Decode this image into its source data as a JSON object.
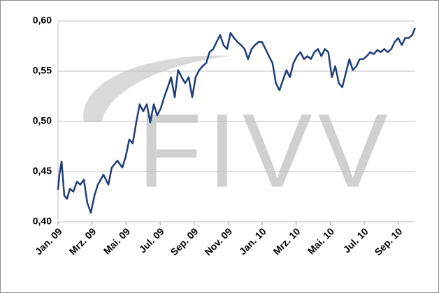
{
  "chart_data": {
    "type": "line",
    "watermark": "FIVV",
    "x": [
      0,
      0.08,
      0.21,
      0.37,
      0.53,
      0.7,
      0.9,
      1.11,
      1.31,
      1.52,
      1.72,
      1.93,
      2.14,
      2.34,
      2.67,
      2.96,
      3.16,
      3.49,
      3.78,
      3.98,
      4.19,
      4.39,
      4.6,
      4.8,
      5.01,
      5.22,
      5.42,
      5.63,
      5.83,
      6.04,
      6.24,
      6.45,
      6.65,
      6.86,
      7.06,
      7.27,
      7.47,
      7.68,
      7.89,
      8.09,
      8.3,
      8.5,
      8.71,
      8.91,
      9.12,
      9.32,
      9.53,
      9.73,
      9.94,
      10.14,
      10.35,
      10.55,
      10.76,
      10.97,
      11.17,
      11.38,
      11.58,
      11.79,
      11.99,
      12.2,
      12.4,
      12.61,
      12.81,
      13.02,
      13.22,
      13.43,
      13.63,
      13.84,
      14.05,
      14.25,
      14.46,
      14.66,
      14.87,
      15.07,
      15.28,
      15.48,
      15.69,
      15.89,
      16.1,
      16.3,
      16.51,
      16.71,
      16.92,
      17.13,
      17.33,
      17.54,
      17.74,
      17.95,
      18.15,
      18.36,
      18.56,
      18.77,
      18.97,
      19.18,
      19.38,
      19.59,
      19.79,
      20.0,
      20.21,
      20.41,
      20.62,
      20.82,
      20.99
    ],
    "series": [
      {
        "color": "#1f3d7a",
        "values": [
          0.432,
          0.447,
          0.46,
          0.426,
          0.423,
          0.433,
          0.43,
          0.44,
          0.437,
          0.442,
          0.419,
          0.409,
          0.426,
          0.437,
          0.447,
          0.437,
          0.454,
          0.461,
          0.454,
          0.465,
          0.482,
          0.478,
          0.499,
          0.517,
          0.51,
          0.517,
          0.499,
          0.517,
          0.506,
          0.513,
          0.524,
          0.534,
          0.544,
          0.524,
          0.551,
          0.544,
          0.538,
          0.544,
          0.524,
          0.544,
          0.551,
          0.555,
          0.558,
          0.569,
          0.572,
          0.579,
          0.586,
          0.576,
          0.572,
          0.588,
          0.583,
          0.579,
          0.576,
          0.572,
          0.562,
          0.572,
          0.576,
          0.579,
          0.579,
          0.572,
          0.565,
          0.558,
          0.538,
          0.531,
          0.541,
          0.551,
          0.544,
          0.558,
          0.565,
          0.569,
          0.562,
          0.565,
          0.562,
          0.569,
          0.572,
          0.565,
          0.572,
          0.569,
          0.544,
          0.555,
          0.538,
          0.534,
          0.548,
          0.562,
          0.551,
          0.555,
          0.562,
          0.562,
          0.565,
          0.569,
          0.567,
          0.571,
          0.569,
          0.572,
          0.569,
          0.572,
          0.579,
          0.583,
          0.576,
          0.583,
          0.583,
          0.586,
          0.593
        ]
      }
    ],
    "xlim": [
      0,
      21
    ],
    "xticks": [
      {
        "value": 0,
        "label": "Jan. 09"
      },
      {
        "value": 2,
        "label": "Mrz. 09"
      },
      {
        "value": 4,
        "label": "Mai. 09"
      },
      {
        "value": 6,
        "label": "Jul. 09"
      },
      {
        "value": 8,
        "label": "Sep. 09"
      },
      {
        "value": 10,
        "label": "Nov. 09"
      },
      {
        "value": 12,
        "label": "Jan. 10"
      },
      {
        "value": 14,
        "label": "Mrz. 10"
      },
      {
        "value": 16,
        "label": "Mai. 10"
      },
      {
        "value": 18,
        "label": "Jul. 10"
      },
      {
        "value": 20,
        "label": "Sep. 10"
      }
    ],
    "ylim": [
      0.4,
      0.6
    ],
    "yticks": [
      {
        "value": 0.4,
        "label": "0,40"
      },
      {
        "value": 0.45,
        "label": "0,45"
      },
      {
        "value": 0.5,
        "label": "0,50"
      },
      {
        "value": 0.55,
        "label": "0,55"
      },
      {
        "value": 0.6,
        "label": "0,60"
      }
    ],
    "grid": true
  }
}
